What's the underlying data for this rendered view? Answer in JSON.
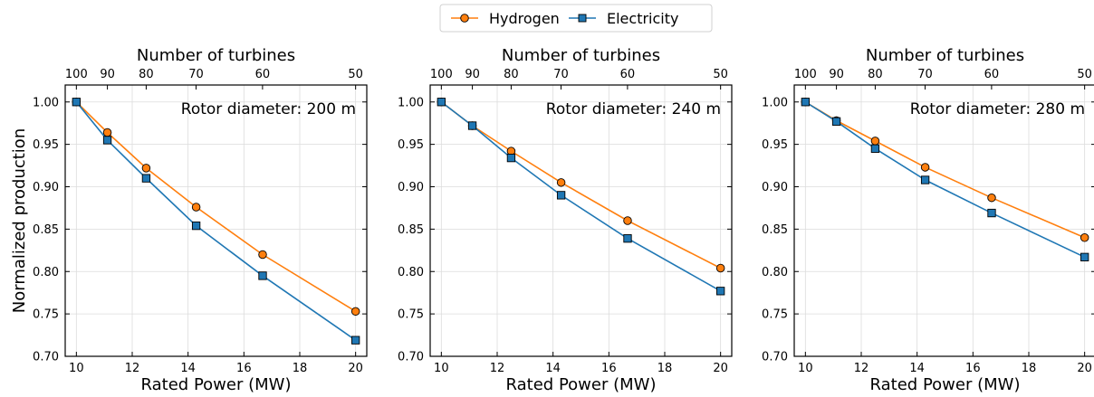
{
  "legend": {
    "entries": [
      {
        "label": "Hydrogen",
        "color": "#ff7f0e",
        "marker": "circle"
      },
      {
        "label": "Electricity",
        "color": "#1f77b4",
        "marker": "square"
      }
    ],
    "placement": "top-center"
  },
  "chart_data": [
    {
      "type": "line",
      "annotation": "Rotor diameter: 200 m",
      "xlabel": "Rated Power (MW)",
      "ylabel": "Normalized production",
      "x2label": "Number of turbines",
      "xlim": [
        9.6,
        20.4
      ],
      "ylim": [
        0.7,
        1.02
      ],
      "xticks": [
        10,
        12,
        14,
        16,
        18,
        20
      ],
      "yticks": [
        "0.70",
        "0.75",
        "0.80",
        "0.85",
        "0.90",
        "0.95",
        "1.00"
      ],
      "x2ticks": [
        100,
        90,
        80,
        70,
        60,
        50
      ],
      "grid": true,
      "x": [
        10,
        11.11,
        12.5,
        14.29,
        16.67,
        20
      ],
      "series": [
        {
          "name": "Hydrogen",
          "values": [
            1.0,
            0.964,
            0.922,
            0.876,
            0.82,
            0.753
          ]
        },
        {
          "name": "Electricity",
          "values": [
            1.0,
            0.955,
            0.91,
            0.854,
            0.795,
            0.719
          ]
        }
      ]
    },
    {
      "type": "line",
      "annotation": "Rotor diameter: 240 m",
      "xlabel": "Rated Power (MW)",
      "ylabel": "",
      "x2label": "Number of turbines",
      "xlim": [
        9.6,
        20.4
      ],
      "ylim": [
        0.7,
        1.02
      ],
      "xticks": [
        10,
        12,
        14,
        16,
        18,
        20
      ],
      "yticks": [
        "0.70",
        "0.75",
        "0.80",
        "0.85",
        "0.90",
        "0.95",
        "1.00"
      ],
      "x2ticks": [
        100,
        90,
        80,
        70,
        60,
        50
      ],
      "grid": true,
      "x": [
        10,
        11.11,
        12.5,
        14.29,
        16.67,
        20
      ],
      "series": [
        {
          "name": "Hydrogen",
          "values": [
            1.0,
            0.972,
            0.942,
            0.905,
            0.86,
            0.804
          ]
        },
        {
          "name": "Electricity",
          "values": [
            1.0,
            0.972,
            0.934,
            0.89,
            0.839,
            0.777
          ]
        }
      ]
    },
    {
      "type": "line",
      "annotation": "Rotor diameter: 280 m",
      "xlabel": "Rated Power (MW)",
      "ylabel": "",
      "x2label": "Number of turbines",
      "xlim": [
        9.6,
        20.4
      ],
      "ylim": [
        0.7,
        1.02
      ],
      "xticks": [
        10,
        12,
        14,
        16,
        18,
        20
      ],
      "yticks": [
        "0.70",
        "0.75",
        "0.80",
        "0.85",
        "0.90",
        "0.95",
        "1.00"
      ],
      "x2ticks": [
        100,
        90,
        80,
        70,
        60,
        50
      ],
      "grid": true,
      "x": [
        10,
        11.11,
        12.5,
        14.29,
        16.67,
        20
      ],
      "series": [
        {
          "name": "Hydrogen",
          "values": [
            1.0,
            0.978,
            0.954,
            0.923,
            0.887,
            0.84
          ]
        },
        {
          "name": "Electricity",
          "values": [
            1.0,
            0.977,
            0.945,
            0.908,
            0.869,
            0.817
          ]
        }
      ]
    }
  ]
}
